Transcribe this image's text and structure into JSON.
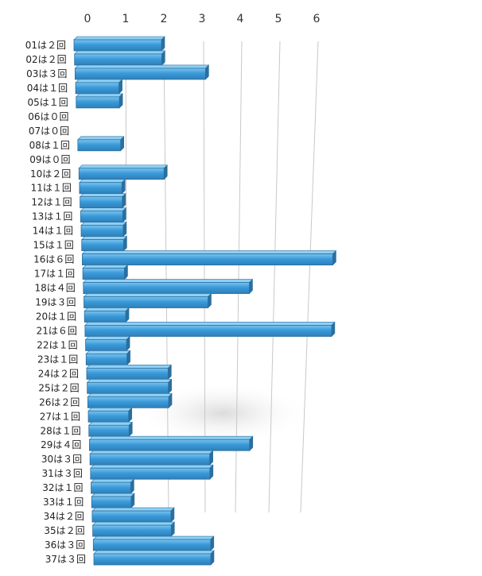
{
  "chart_data": {
    "type": "bar",
    "orientation": "horizontal",
    "style": "3d-perspective",
    "bar_color": "#3a9ad9",
    "bar_edge_color": "#2a6f9e",
    "grid": true,
    "xlim": [
      0,
      6
    ],
    "x_ticks": [
      "0",
      "1",
      "2",
      "3",
      "4",
      "5",
      "6"
    ],
    "categories": [
      "01は２回",
      "02は２回",
      "03は３回",
      "04は１回",
      "05は１回",
      "06は０回",
      "07は０回",
      "08は１回",
      "09は０回",
      "10は２回",
      "11は１回",
      "12は１回",
      "13は１回",
      "14は１回",
      "15は１回",
      "16は６回",
      "17は１回",
      "18は４回",
      "19は３回",
      "20は１回",
      "21は６回",
      "22は１回",
      "23は１回",
      "24は２回",
      "25は２回",
      "26は２回",
      "27は１回",
      "28は１回",
      "29は４回",
      "30は３回",
      "31は３回",
      "32は１回",
      "33は１回",
      "34は２回",
      "35は２回",
      "36は３回",
      "37は３回"
    ],
    "values": [
      2,
      2,
      3,
      1,
      1,
      0,
      0,
      1,
      0,
      2,
      1,
      1,
      1,
      1,
      1,
      6,
      1,
      4,
      3,
      1,
      6,
      1,
      1,
      2,
      2,
      2,
      1,
      1,
      4,
      3,
      3,
      1,
      1,
      2,
      2,
      3,
      3
    ]
  }
}
